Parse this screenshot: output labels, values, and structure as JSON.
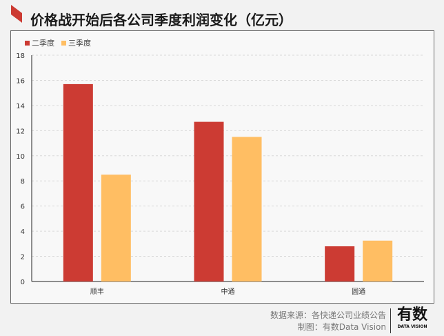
{
  "title": "价格战开始后各公司季度利润变化（亿元）",
  "colors": {
    "accent": "#cc3b33",
    "q2": "#cc3b33",
    "q3": "#ffbe63"
  },
  "chart_data": {
    "type": "bar",
    "categories": [
      "顺丰",
      "中通",
      "圆通"
    ],
    "series": [
      {
        "name": "二季度",
        "values": [
          15.7,
          12.7,
          2.8
        ]
      },
      {
        "name": "三季度",
        "values": [
          8.5,
          11.5,
          3.25
        ]
      }
    ],
    "ylim": [
      0,
      18
    ],
    "yticks": [
      "0",
      "2",
      "4",
      "6",
      "8",
      "10",
      "12",
      "14",
      "16",
      "18"
    ],
    "grid": true,
    "legend": "top-left"
  },
  "footer": {
    "source": "数据来源：各快递公司业绩公告",
    "made_by": "制图：有数Data Vision",
    "logo_text": "有数",
    "logo_sub": "DATA VISION"
  }
}
